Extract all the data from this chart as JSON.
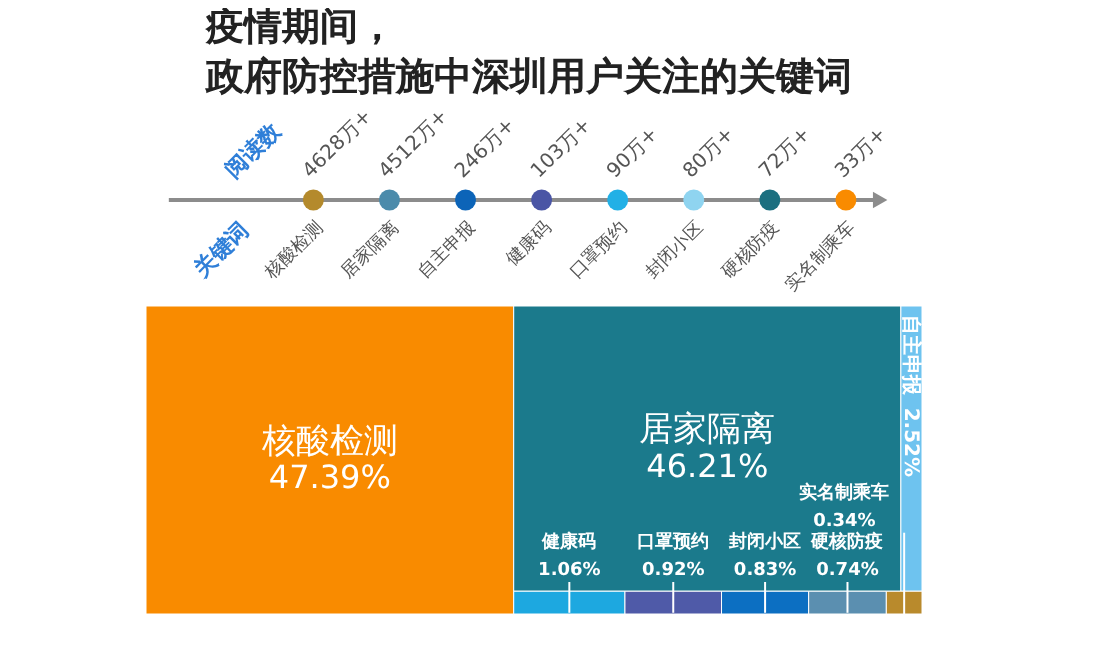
{
  "chart_data": [
    {
      "type": "other",
      "title": "疫情期间，",
      "subtitle": "政府防控措施中深圳用户关注的关键词",
      "xlabel": "关键词",
      "ylabel": "阅读数",
      "categories": [
        "核酸检测",
        "居家隔离",
        "自主申报",
        "健康码",
        "口罩预约",
        "封闭小区",
        "硬核防疫",
        "实名制乘车"
      ],
      "values": [
        4628,
        4512,
        246,
        103,
        90,
        80,
        72,
        33
      ],
      "value_labels": [
        "4628万+",
        "4512万+",
        "246万+",
        "103万+",
        "90万+",
        "80万+",
        "72万+",
        "33万+"
      ],
      "colors": [
        "#b48a2c",
        "#4b8bab",
        "#0c64b8",
        "#4a55a5",
        "#22b0e6",
        "#8fd4f0",
        "#1b6f80",
        "#f98b00"
      ]
    },
    {
      "type": "other",
      "categories": [
        "核酸检测",
        "居家隔离",
        "自主申报",
        "健康码",
        "口罩预约",
        "封闭小区",
        "硬核防疫",
        "实名制乘车"
      ],
      "values": [
        47.39,
        46.21,
        2.52,
        1.06,
        0.92,
        0.83,
        0.74,
        0.34
      ],
      "value_labels": [
        "47.39%",
        "46.21%",
        "2.52%",
        "1.06%",
        "0.92%",
        "0.83%",
        "0.74%",
        "0.34%"
      ],
      "colors": [
        "#f98b00",
        "#1b7a8c",
        "#6ec3ef",
        "#1da8e0",
        "#4f5aa8",
        "#0c6fc2",
        "#5b8fb0",
        "#b98a2c"
      ]
    }
  ]
}
